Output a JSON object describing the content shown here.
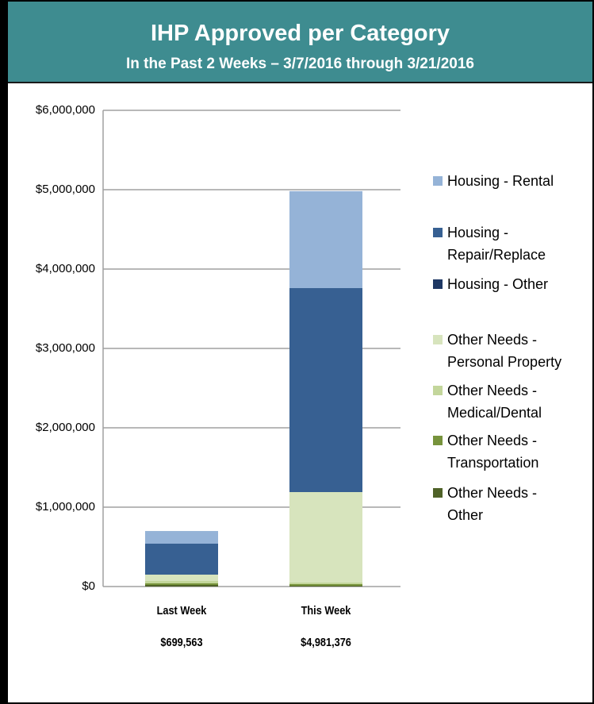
{
  "chart_data": {
    "type": "stacked_bar",
    "title": "IHP Approved per Category",
    "subtitle": "In the Past 2 Weeks – 3/7/2016 through 3/21/2016",
    "categories": [
      "Last Week",
      "This Week"
    ],
    "total_labels": [
      "$699,563",
      "$4,981,376"
    ],
    "series": [
      {
        "name": "Housing - Rental",
        "color": "#95b3d7",
        "values": [
          159563,
          1221376
        ]
      },
      {
        "name": "Housing - Repair/Replace",
        "color": "#376092",
        "values": [
          390000,
          2570000
        ]
      },
      {
        "name": "Housing - Other",
        "color": "#1f3864",
        "values": [
          0,
          0
        ]
      },
      {
        "name": "Other Needs - Personal Property",
        "color": "#d7e4bd",
        "values": [
          80000,
          1140000
        ]
      },
      {
        "name": "Other Needs - Medical/Dental",
        "color": "#c3d69b",
        "values": [
          30000,
          20000
        ]
      },
      {
        "name": "Other Needs - Transportation",
        "color": "#77933c",
        "values": [
          20000,
          20000
        ]
      },
      {
        "name": "Other Needs - Other",
        "color": "#4f6228",
        "values": [
          20000,
          10000
        ]
      }
    ],
    "ylim": [
      0,
      6000000
    ],
    "yticks": [
      {
        "value": 0,
        "label": "$0"
      },
      {
        "value": 1000000,
        "label": "$1,000,000"
      },
      {
        "value": 2000000,
        "label": "$2,000,000"
      },
      {
        "value": 3000000,
        "label": "$3,000,000"
      },
      {
        "value": 4000000,
        "label": "$4,000,000"
      },
      {
        "value": 5000000,
        "label": "$5,000,000"
      },
      {
        "value": 6000000,
        "label": "$6,000,000"
      }
    ],
    "grid": true,
    "legend": "right"
  }
}
